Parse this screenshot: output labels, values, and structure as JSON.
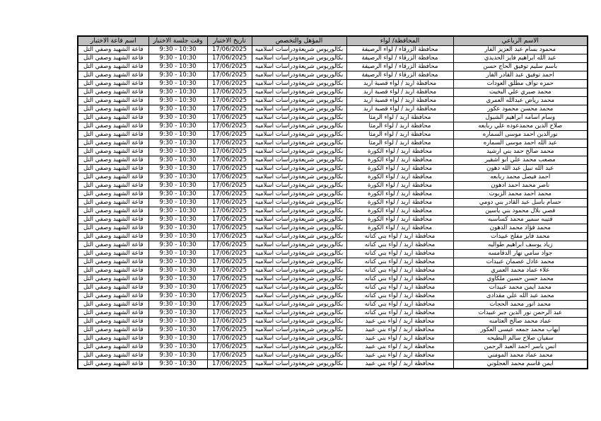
{
  "colors": {
    "header_bg": "#bfbfbf",
    "border": "#000000",
    "page_bg": "#ffffff"
  },
  "table": {
    "columns": [
      {
        "key": "name",
        "label": "الاسم الرباعي"
      },
      {
        "key": "governorate",
        "label": "المحافظة/ لواء"
      },
      {
        "key": "qualification",
        "label": "المؤهل والتخصص"
      },
      {
        "key": "exam_date",
        "label": "تاريخ الاختبار"
      },
      {
        "key": "exam_time",
        "label": "وقت جلسة الاختبار"
      },
      {
        "key": "exam_hall",
        "label": "اسم قاعة الاختبار"
      }
    ],
    "shared": {
      "qualification": "بكالوريوس شريعةودراسات اسلاميه",
      "exam_date": "17/06/2025",
      "exam_time": "9:30 - 10:30",
      "exam_hall": "قاعة الشهيد وصفي التل"
    },
    "rows": [
      {
        "name": "محمود بسام عبد العزيز الفار",
        "governorate": "محافظة الزرقاء / لواء الرصيفة"
      },
      {
        "name": "عبد الله ابراهيم فايز الحديدي",
        "governorate": "محافظة الزرقاء / لواء الرصيفة"
      },
      {
        "name": "باسم سليم توفيق الحاج حسن",
        "governorate": "محافظة الزرقاء / لواء الرصيفة"
      },
      {
        "name": "احمد توفيق عبد القادر الفار",
        "governorate": "محافظة الزرقاء / لواء الرصيفة"
      },
      {
        "name": "حمزه نواف مطلق العودات",
        "governorate": "محافظة اربد / لواء قصبة اربد"
      },
      {
        "name": "محمد صبري علي البخيت",
        "governorate": "محافظة اربد / لواء قصبة اربد"
      },
      {
        "name": "محمد رياض عبدالله العمري",
        "governorate": "محافظة اربد / لواء قصبة اربد"
      },
      {
        "name": "محمد محسن محمود عكور",
        "governorate": "محافظة اربد / لواء قصبة اربد"
      },
      {
        "name": "وسام اسامه ابراهيم الشبول",
        "governorate": "محافظة اربد / لواء الرمثا"
      },
      {
        "name": "صلاح الدين محمدعوده علي ربابعه",
        "governorate": "محافظة اربد / لواء الرمثا"
      },
      {
        "name": "نورالدين احمد موسى السماره",
        "governorate": "محافظة اربد / لواء الرمثا"
      },
      {
        "name": "عبد الله احمد موسى السماره",
        "governorate": "محافظة اربد / لواء الرمثا"
      },
      {
        "name": "محمد صالح حمد بني ارشيد",
        "governorate": "محافظة اربد / لواء الكورة"
      },
      {
        "name": "مصعب محمد علي ابو اشقير",
        "governorate": "محافظة اربد / لواء الكورة"
      },
      {
        "name": "عبد الله نبيل عبد الله دهون",
        "governorate": "محافظة اربد / لواء الكورة"
      },
      {
        "name": "احمد فيصل محمد ربابعه",
        "governorate": "محافظة اربد / لواء الكورة"
      },
      {
        "name": "ناصر محمد احمد ادهون",
        "governorate": "محافظة اربد / لواء الكورة"
      },
      {
        "name": "محمد احمد محمد الزبوت",
        "governorate": "محافظة اربد / لواء الكورة"
      },
      {
        "name": "حسام باسل عبد القادر بني دومي",
        "governorate": "محافظة اربد / لواء الكورة"
      },
      {
        "name": "قصي بلال محمود بني ياسين",
        "governorate": "محافظة اربد / لواء الكورة"
      },
      {
        "name": "قتيبه سمير محمد كساسبه",
        "governorate": "محافظة اربد / لواء الكورة"
      },
      {
        "name": "محمد فؤاد محمد الدهون",
        "governorate": "محافظة اربد / لواء الكورة"
      },
      {
        "name": "محمد فايز مفلح عبيدات",
        "governorate": "محافظة اربد / لواء بني كنانه"
      },
      {
        "name": "زياد يوسف ابراهيم طواليه",
        "governorate": "محافظة اربد / لواء بني كنانه"
      },
      {
        "name": "جواد سامي نهار الدقامسه",
        "governorate": "محافظة اربد / لواء بني كنانه"
      },
      {
        "name": "محمد عادل عصمان عبيدات",
        "governorate": "محافظة اربد / لواء بني كنانه"
      },
      {
        "name": "علاء عماد محمد العمري",
        "governorate": "محافظة اربد / لواء بني كنانه"
      },
      {
        "name": "محمد حسن حسين ملكاوي",
        "governorate": "محافظة اربد / لواء بني كنانه"
      },
      {
        "name": "محمد ايمن محمد عبيدات",
        "governorate": "محافظة اربد / لواء بني كنانه"
      },
      {
        "name": "محمد عبد الله علي مقدادى",
        "governorate": "محافظة اربد / لواء بني كنانه"
      },
      {
        "name": "محمد انور محمد الحجات",
        "governorate": "محافظة اربد / لواء بني كنانه"
      },
      {
        "name": "عبد الرحمن نور الدين جبر عبيدات",
        "governorate": "محافظة اربد / لواء بني كنانه"
      },
      {
        "name": "عماد محمد صالح العثامنه",
        "governorate": "محافظة اربد / لواء بني عبيد"
      },
      {
        "name": "ايهاب محمد جمعه عيسى العكور",
        "governorate": "محافظة اربد / لواء بني عبيد"
      },
      {
        "name": "سفيان صلاح سالم البطيحه",
        "governorate": "محافظة اربد / لواء بني عبيد"
      },
      {
        "name": "انس ياسر احمد العبد الرحمن",
        "governorate": "محافظة اربد / لواء بني عبيد"
      },
      {
        "name": "محمد عماد محمد المومني",
        "governorate": "محافظة اربد / لواء بني عبيد"
      },
      {
        "name": "ايمن قاسم محمد العجلوني",
        "governorate": "محافظة اربد / لواء بني عبيد"
      }
    ]
  }
}
